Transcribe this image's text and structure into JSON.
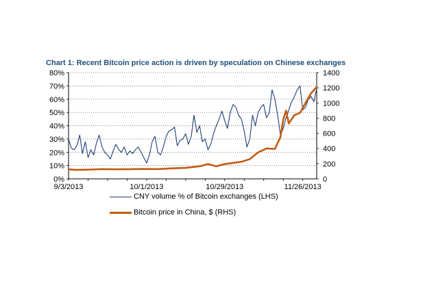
{
  "chart_data": {
    "type": "line",
    "title": "Chart 1: Recent Bitcoin price action is driven by speculation on Chinese exchanges",
    "x_tick_labels": [
      "9/3/2013",
      "10/1/2013",
      "10/29/2013",
      "11/26/2013"
    ],
    "y_left_ticks": [
      "0%",
      "10%",
      "20%",
      "30%",
      "40%",
      "50%",
      "60%",
      "70%",
      "80%"
    ],
    "y_right_ticks": [
      "0",
      "200",
      "400",
      "600",
      "800",
      "1000",
      "1200",
      "1400"
    ],
    "y_left_range": [
      0,
      80
    ],
    "y_right_range": [
      0,
      1400
    ],
    "x_range": [
      "2013-09-03",
      "2013-12-01"
    ],
    "grid": "horizontal dotted",
    "legend_position": "bottom",
    "series": [
      {
        "name": "CNY volume % of Bitcoin exchanges (LHS)",
        "axis": "left",
        "color": "#1f3d73",
        "x": [
          "2013-09-03",
          "2013-09-04",
          "2013-09-05",
          "2013-09-06",
          "2013-09-07",
          "2013-09-08",
          "2013-09-09",
          "2013-09-10",
          "2013-09-11",
          "2013-09-12",
          "2013-09-13",
          "2013-09-14",
          "2013-09-15",
          "2013-09-16",
          "2013-09-17",
          "2013-09-18",
          "2013-09-19",
          "2013-09-20",
          "2013-09-21",
          "2013-09-22",
          "2013-09-23",
          "2013-09-24",
          "2013-09-25",
          "2013-09-26",
          "2013-09-27",
          "2013-09-28",
          "2013-09-29",
          "2013-09-30",
          "2013-10-01",
          "2013-10-02",
          "2013-10-03",
          "2013-10-04",
          "2013-10-05",
          "2013-10-06",
          "2013-10-07",
          "2013-10-08",
          "2013-10-09",
          "2013-10-10",
          "2013-10-11",
          "2013-10-12",
          "2013-10-13",
          "2013-10-14",
          "2013-10-15",
          "2013-10-16",
          "2013-10-17",
          "2013-10-18",
          "2013-10-19",
          "2013-10-20",
          "2013-10-21",
          "2013-10-22",
          "2013-10-23",
          "2013-10-24",
          "2013-10-25",
          "2013-10-26",
          "2013-10-27",
          "2013-10-28",
          "2013-10-29",
          "2013-10-30",
          "2013-10-31",
          "2013-11-01",
          "2013-11-02",
          "2013-11-03",
          "2013-11-04",
          "2013-11-05",
          "2013-11-06",
          "2013-11-07",
          "2013-11-08",
          "2013-11-09",
          "2013-11-10",
          "2013-11-11",
          "2013-11-12",
          "2013-11-13",
          "2013-11-14",
          "2013-11-15",
          "2013-11-16",
          "2013-11-17",
          "2013-11-18",
          "2013-11-19",
          "2013-11-20",
          "2013-11-21",
          "2013-11-22",
          "2013-11-23",
          "2013-11-24",
          "2013-11-25",
          "2013-11-26",
          "2013-11-27",
          "2013-11-28",
          "2013-11-29",
          "2013-11-30",
          "2013-12-01"
        ],
        "y": [
          30,
          23,
          22,
          25,
          33,
          19,
          28,
          16,
          22,
          18,
          27,
          33,
          24,
          20,
          18,
          15,
          21,
          26,
          22,
          20,
          24,
          18,
          21,
          19,
          22,
          24,
          20,
          16,
          12,
          18,
          28,
          32,
          20,
          18,
          24,
          32,
          36,
          37,
          39,
          25,
          29,
          30,
          34,
          26,
          32,
          48,
          35,
          40,
          28,
          30,
          22,
          26,
          34,
          40,
          45,
          51,
          44,
          38,
          50,
          56,
          54,
          48,
          45,
          36,
          24,
          30,
          48,
          40,
          50,
          54,
          56,
          46,
          50,
          67,
          60,
          48,
          33,
          38,
          46,
          52,
          58,
          62,
          67,
          70,
          52,
          54,
          60,
          62,
          58,
          68
        ],
        "y_note": "percent"
      },
      {
        "name": "Bitcoin price in China, $ (RHS)",
        "axis": "right",
        "color": "#c55a11",
        "x": [
          "2013-09-03",
          "2013-09-06",
          "2013-09-10",
          "2013-09-15",
          "2013-09-20",
          "2013-09-25",
          "2013-09-30",
          "2013-10-05",
          "2013-10-10",
          "2013-10-15",
          "2013-10-20",
          "2013-10-23",
          "2013-10-26",
          "2013-10-29",
          "2013-11-01",
          "2013-11-04",
          "2013-11-07",
          "2013-11-10",
          "2013-11-13",
          "2013-11-16",
          "2013-11-18",
          "2013-11-19",
          "2013-11-20",
          "2013-11-21",
          "2013-11-23",
          "2013-11-25",
          "2013-11-27",
          "2013-11-29",
          "2013-12-01"
        ],
        "y": [
          125,
          118,
          122,
          128,
          126,
          127,
          130,
          128,
          138,
          145,
          165,
          195,
          165,
          195,
          210,
          225,
          260,
          350,
          400,
          395,
          550,
          780,
          900,
          730,
          840,
          870,
          1000,
          1130,
          1210
        ]
      }
    ]
  }
}
